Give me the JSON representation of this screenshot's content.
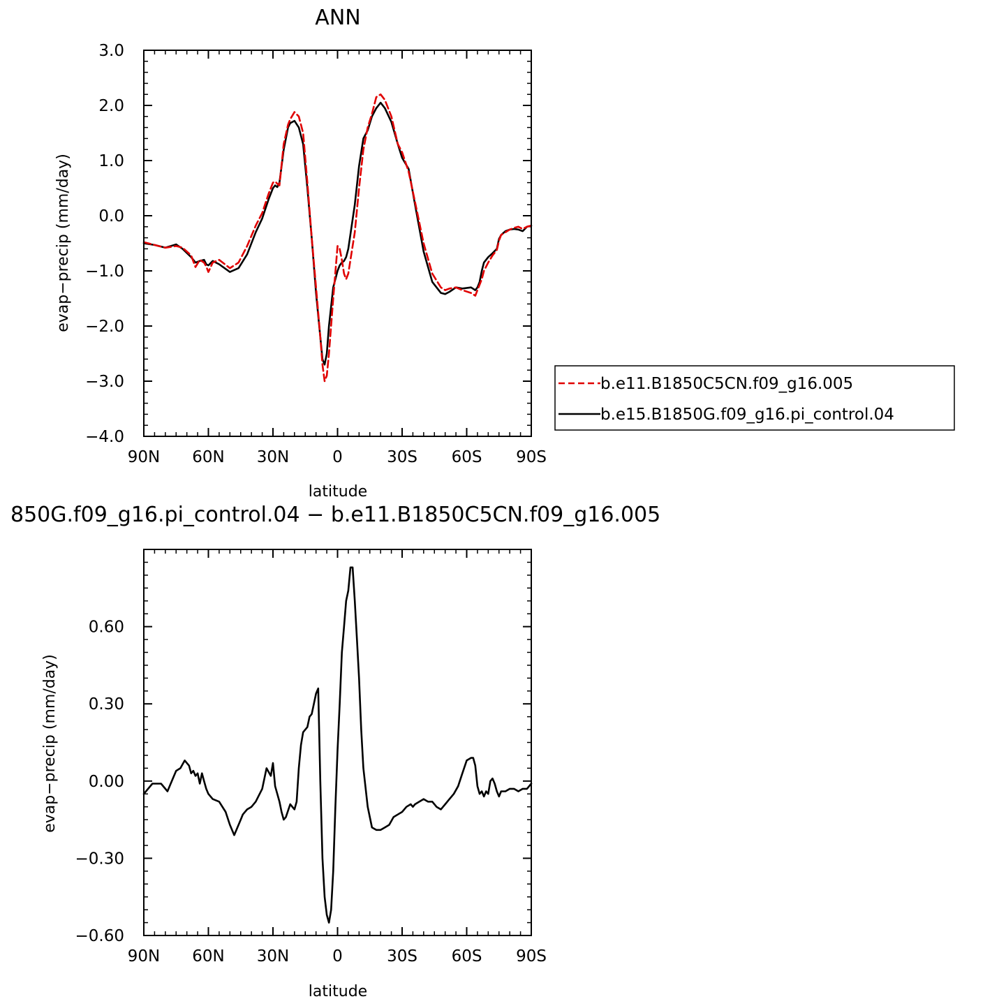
{
  "chart_data": [
    {
      "type": "line",
      "title": "ANN",
      "xlabel": "latitude",
      "ylabel": "evap−precip (mm/day)",
      "xlim": [
        90,
        -90
      ],
      "ylim": [
        -4.0,
        3.0
      ],
      "x_ticks": [
        90,
        60,
        30,
        0,
        -30,
        -60,
        -90
      ],
      "x_tick_labels": [
        "90N",
        "60N",
        "30N",
        "0",
        "30S",
        "60S",
        "90S"
      ],
      "y_ticks": [
        3.0,
        2.0,
        1.0,
        0.0,
        -1.0,
        -2.0,
        -3.0,
        -4.0
      ],
      "y_tick_labels": [
        "3.0",
        "2.0",
        "1.0",
        "0.0",
        "−1.0",
        "−2.0",
        "−3.0",
        "−4.0"
      ],
      "legend": {
        "placement": "right",
        "entries": [
          "b.e11.B1850C5CN.f09_g16.005",
          "b.e15.B1850G.f09_g16.pi_control.04"
        ]
      },
      "series": [
        {
          "name": "b.e11.B1850C5CN.f09_g16.005",
          "color": "#e00000",
          "dash": "dashed",
          "x": [
            90,
            85,
            80,
            75,
            72,
            68,
            66,
            64,
            62,
            61,
            60,
            58,
            55,
            50,
            46,
            42,
            38,
            35,
            32,
            30,
            29,
            28,
            27,
            25,
            23,
            22,
            20,
            18,
            16,
            14,
            12,
            10,
            8,
            7,
            6,
            5,
            4,
            2,
            0,
            -1,
            -2,
            -3,
            -4,
            -5,
            -8,
            -10,
            -12,
            -14,
            -16,
            -18,
            -20,
            -22,
            -25,
            -28,
            -30,
            -33,
            -36,
            -40,
            -44,
            -48,
            -50,
            -52,
            -55,
            -58,
            -62,
            -64,
            -65,
            -66,
            -67,
            -68,
            -70,
            -72,
            -74,
            -75,
            -76,
            -78,
            -80,
            -82,
            -84,
            -86,
            -88,
            -90
          ],
          "values": [
            -0.48,
            -0.53,
            -0.58,
            -0.55,
            -0.58,
            -0.72,
            -0.93,
            -0.8,
            -0.85,
            -0.92,
            -1.02,
            -0.85,
            -0.8,
            -0.95,
            -0.85,
            -0.55,
            -0.18,
            0.05,
            0.4,
            0.6,
            0.62,
            0.58,
            0.55,
            1.3,
            1.65,
            1.75,
            1.88,
            1.8,
            1.5,
            0.6,
            -0.4,
            -1.3,
            -2.2,
            -2.7,
            -3.0,
            -2.9,
            -2.5,
            -1.5,
            -0.55,
            -0.6,
            -0.8,
            -1.05,
            -1.15,
            -1.05,
            -0.3,
            0.5,
            1.2,
            1.6,
            1.85,
            2.15,
            2.2,
            2.1,
            1.8,
            1.3,
            1.15,
            0.8,
            0.25,
            -0.5,
            -1.05,
            -1.3,
            -1.35,
            -1.32,
            -1.3,
            -1.35,
            -1.4,
            -1.45,
            -1.35,
            -1.25,
            -1.15,
            -1.0,
            -0.85,
            -0.72,
            -0.62,
            -0.45,
            -0.35,
            -0.3,
            -0.25,
            -0.22,
            -0.2,
            -0.24,
            -0.2,
            -0.18
          ]
        },
        {
          "name": "b.e15.B1850G.f09_g16.pi_control.04",
          "color": "#000000",
          "dash": "solid",
          "x": [
            90,
            85,
            80,
            75,
            72,
            68,
            66,
            64,
            62,
            61,
            60,
            58,
            55,
            50,
            46,
            42,
            38,
            35,
            32,
            30,
            29,
            28,
            27,
            25,
            23,
            22,
            20,
            18,
            16,
            14,
            12,
            10,
            8,
            7,
            6,
            5,
            4,
            2,
            0,
            -1,
            -2,
            -3,
            -4,
            -5,
            -8,
            -10,
            -12,
            -14,
            -16,
            -18,
            -20,
            -22,
            -25,
            -28,
            -30,
            -33,
            -36,
            -40,
            -44,
            -48,
            -50,
            -52,
            -55,
            -58,
            -62,
            -64,
            -65,
            -66,
            -67,
            -68,
            -70,
            -72,
            -74,
            -75,
            -76,
            -78,
            -80,
            -82,
            -84,
            -86,
            -88,
            -90
          ],
          "values": [
            -0.5,
            -0.53,
            -0.58,
            -0.52,
            -0.6,
            -0.75,
            -0.85,
            -0.82,
            -0.8,
            -0.88,
            -0.9,
            -0.82,
            -0.88,
            -1.02,
            -0.95,
            -0.7,
            -0.3,
            -0.05,
            0.3,
            0.5,
            0.55,
            0.52,
            0.6,
            1.2,
            1.6,
            1.68,
            1.72,
            1.6,
            1.3,
            0.5,
            -0.4,
            -1.4,
            -2.2,
            -2.6,
            -2.7,
            -2.5,
            -2.0,
            -1.3,
            -1.0,
            -0.9,
            -0.85,
            -0.82,
            -0.75,
            -0.6,
            0.2,
            0.9,
            1.4,
            1.55,
            1.8,
            1.95,
            2.05,
            1.95,
            1.7,
            1.3,
            1.05,
            0.85,
            0.2,
            -0.65,
            -1.2,
            -1.4,
            -1.42,
            -1.38,
            -1.3,
            -1.32,
            -1.3,
            -1.35,
            -1.3,
            -1.2,
            -1.0,
            -0.85,
            -0.75,
            -0.68,
            -0.6,
            -0.42,
            -0.35,
            -0.28,
            -0.25,
            -0.24,
            -0.25,
            -0.28,
            -0.2,
            -0.18
          ]
        }
      ]
    },
    {
      "type": "line",
      "title": "850G.f09_g16.pi_control.04 − b.e11.B1850C5CN.f09_g16.005",
      "xlabel": "latitude",
      "ylabel": "evap−precip (mm/day)",
      "xlim": [
        90,
        -90
      ],
      "ylim": [
        -0.6,
        0.9
      ],
      "x_ticks": [
        90,
        60,
        30,
        0,
        -30,
        -60,
        -90
      ],
      "x_tick_labels": [
        "90N",
        "60N",
        "30N",
        "0",
        "30S",
        "60S",
        "90S"
      ],
      "y_ticks": [
        0.6,
        0.3,
        0.0,
        -0.3,
        -0.6
      ],
      "y_tick_labels": [
        "0.60",
        "0.30",
        "0.00",
        "−0.30",
        "−0.60"
      ],
      "series": [
        {
          "color": "#000000",
          "dash": "solid",
          "x": [
            90,
            86,
            82,
            79,
            76,
            75,
            73,
            71,
            69,
            68,
            67,
            66,
            65,
            64,
            63,
            62,
            61,
            60,
            58,
            55,
            52,
            50,
            48,
            46,
            45,
            44,
            42,
            40,
            38,
            35,
            33,
            31,
            30,
            29,
            28,
            27,
            26,
            25,
            24,
            22,
            20,
            19,
            18,
            17,
            16,
            14,
            13,
            12,
            10,
            9,
            8,
            7,
            6,
            5,
            4,
            3,
            2,
            1,
            0,
            -1,
            -2,
            -3,
            -4,
            -5,
            -6,
            -7,
            -8,
            -9,
            -10,
            -11,
            -12,
            -14,
            -16,
            -18,
            -20,
            -22,
            -24,
            -26,
            -28,
            -30,
            -32,
            -34,
            -35,
            -36,
            -38,
            -40,
            -42,
            -44,
            -46,
            -48,
            -50,
            -52,
            -54,
            -56,
            -58,
            -60,
            -62,
            -63,
            -64,
            -65,
            -66,
            -67,
            -68,
            -69,
            -70,
            -71,
            -72,
            -73,
            -74,
            -75,
            -76,
            -78,
            -80,
            -82,
            -84,
            -86,
            -88,
            -90
          ],
          "values": [
            -0.05,
            -0.01,
            -0.01,
            -0.04,
            0.02,
            0.04,
            0.05,
            0.08,
            0.06,
            0.03,
            0.04,
            0.02,
            0.03,
            -0.01,
            0.03,
            0.0,
            -0.03,
            -0.05,
            -0.07,
            -0.08,
            -0.12,
            -0.17,
            -0.21,
            -0.17,
            -0.15,
            -0.13,
            -0.11,
            -0.1,
            -0.08,
            -0.03,
            0.05,
            0.02,
            0.07,
            -0.02,
            -0.05,
            -0.08,
            -0.12,
            -0.15,
            -0.14,
            -0.09,
            -0.11,
            -0.08,
            0.05,
            0.14,
            0.19,
            0.21,
            0.25,
            0.26,
            0.34,
            0.36,
            0.0,
            -0.3,
            -0.45,
            -0.52,
            -0.55,
            -0.5,
            -0.35,
            -0.1,
            0.12,
            0.3,
            0.5,
            0.6,
            0.7,
            0.74,
            0.83,
            0.83,
            0.7,
            0.55,
            0.4,
            0.2,
            0.05,
            -0.1,
            -0.18,
            -0.19,
            -0.19,
            -0.18,
            -0.17,
            -0.14,
            -0.13,
            -0.12,
            -0.1,
            -0.09,
            -0.1,
            -0.09,
            -0.08,
            -0.07,
            -0.08,
            -0.08,
            -0.1,
            -0.11,
            -0.09,
            -0.07,
            -0.05,
            -0.02,
            0.03,
            0.08,
            0.09,
            0.09,
            0.06,
            -0.02,
            -0.05,
            -0.04,
            -0.06,
            -0.04,
            -0.05,
            0.0,
            0.01,
            -0.01,
            -0.04,
            -0.06,
            -0.04,
            -0.04,
            -0.03,
            -0.03,
            -0.04,
            -0.03,
            -0.03,
            -0.01
          ]
        }
      ]
    }
  ]
}
